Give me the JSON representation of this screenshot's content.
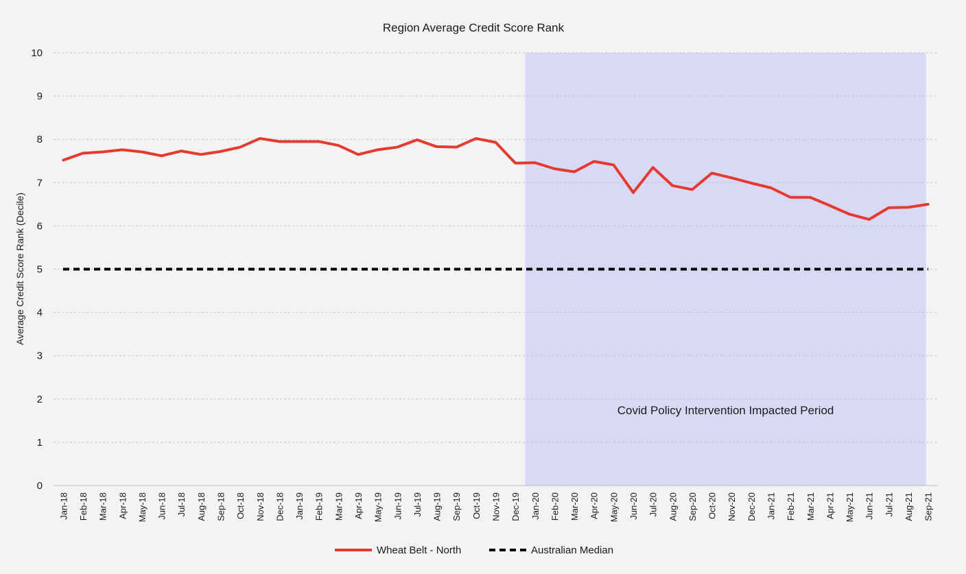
{
  "chart_data": {
    "type": "line",
    "title": "Region Average Credit Score Rank",
    "xlabel": "",
    "ylabel": "Average Credit Score Rank (Decile)",
    "ylim": [
      0,
      10
    ],
    "yticks": [
      0,
      1,
      2,
      3,
      4,
      5,
      6,
      7,
      8,
      9,
      10
    ],
    "grid": true,
    "legend_position": "bottom",
    "categories": [
      "Jan-18",
      "Feb-18",
      "Mar-18",
      "Apr-18",
      "May-18",
      "Jun-18",
      "Jul-18",
      "Aug-18",
      "Sep-18",
      "Oct-18",
      "Nov-18",
      "Dec-18",
      "Jan-19",
      "Feb-19",
      "Mar-19",
      "Apr-19",
      "May-19",
      "Jun-19",
      "Jul-19",
      "Aug-19",
      "Sep-19",
      "Oct-19",
      "Nov-19",
      "Dec-19",
      "Jan-20",
      "Feb-20",
      "Mar-20",
      "Apr-20",
      "May-20",
      "Jun-20",
      "Jul-20",
      "Aug-20",
      "Sep-20",
      "Oct-20",
      "Nov-20",
      "Dec-20",
      "Jan-21",
      "Feb-21",
      "Mar-21",
      "Apr-21",
      "May-21",
      "Jun-21",
      "Jul-21",
      "Aug-21",
      "Sep-21"
    ],
    "series": [
      {
        "name": "Wheat Belt - North",
        "color": "#e53a2f",
        "style": "solid",
        "values": [
          7.52,
          7.68,
          7.71,
          7.76,
          7.71,
          7.62,
          7.73,
          7.65,
          7.72,
          7.82,
          8.02,
          7.95,
          7.95,
          7.95,
          7.86,
          7.65,
          7.76,
          7.82,
          7.99,
          7.83,
          7.82,
          8.02,
          7.93,
          7.45,
          7.46,
          7.32,
          7.25,
          7.49,
          7.41,
          6.77,
          7.35,
          6.93,
          6.84,
          7.22,
          7.11,
          6.99,
          6.88,
          6.66,
          6.66,
          6.47,
          6.27,
          6.15,
          6.42,
          6.43,
          6.5
        ]
      },
      {
        "name": "Australian Median",
        "color": "#000000",
        "style": "dashed",
        "values": [
          5,
          5,
          5,
          5,
          5,
          5,
          5,
          5,
          5,
          5,
          5,
          5,
          5,
          5,
          5,
          5,
          5,
          5,
          5,
          5,
          5,
          5,
          5,
          5,
          5,
          5,
          5,
          5,
          5,
          5,
          5,
          5,
          5,
          5,
          5,
          5,
          5,
          5,
          5,
          5,
          5,
          5,
          5,
          5,
          5
        ]
      }
    ],
    "annotations": [
      {
        "text": "Covid Policy Intervention Impacted Period",
        "x_start": "Jan-20",
        "x_end": "Sep-21",
        "fill": "#d2d2f6"
      }
    ]
  }
}
